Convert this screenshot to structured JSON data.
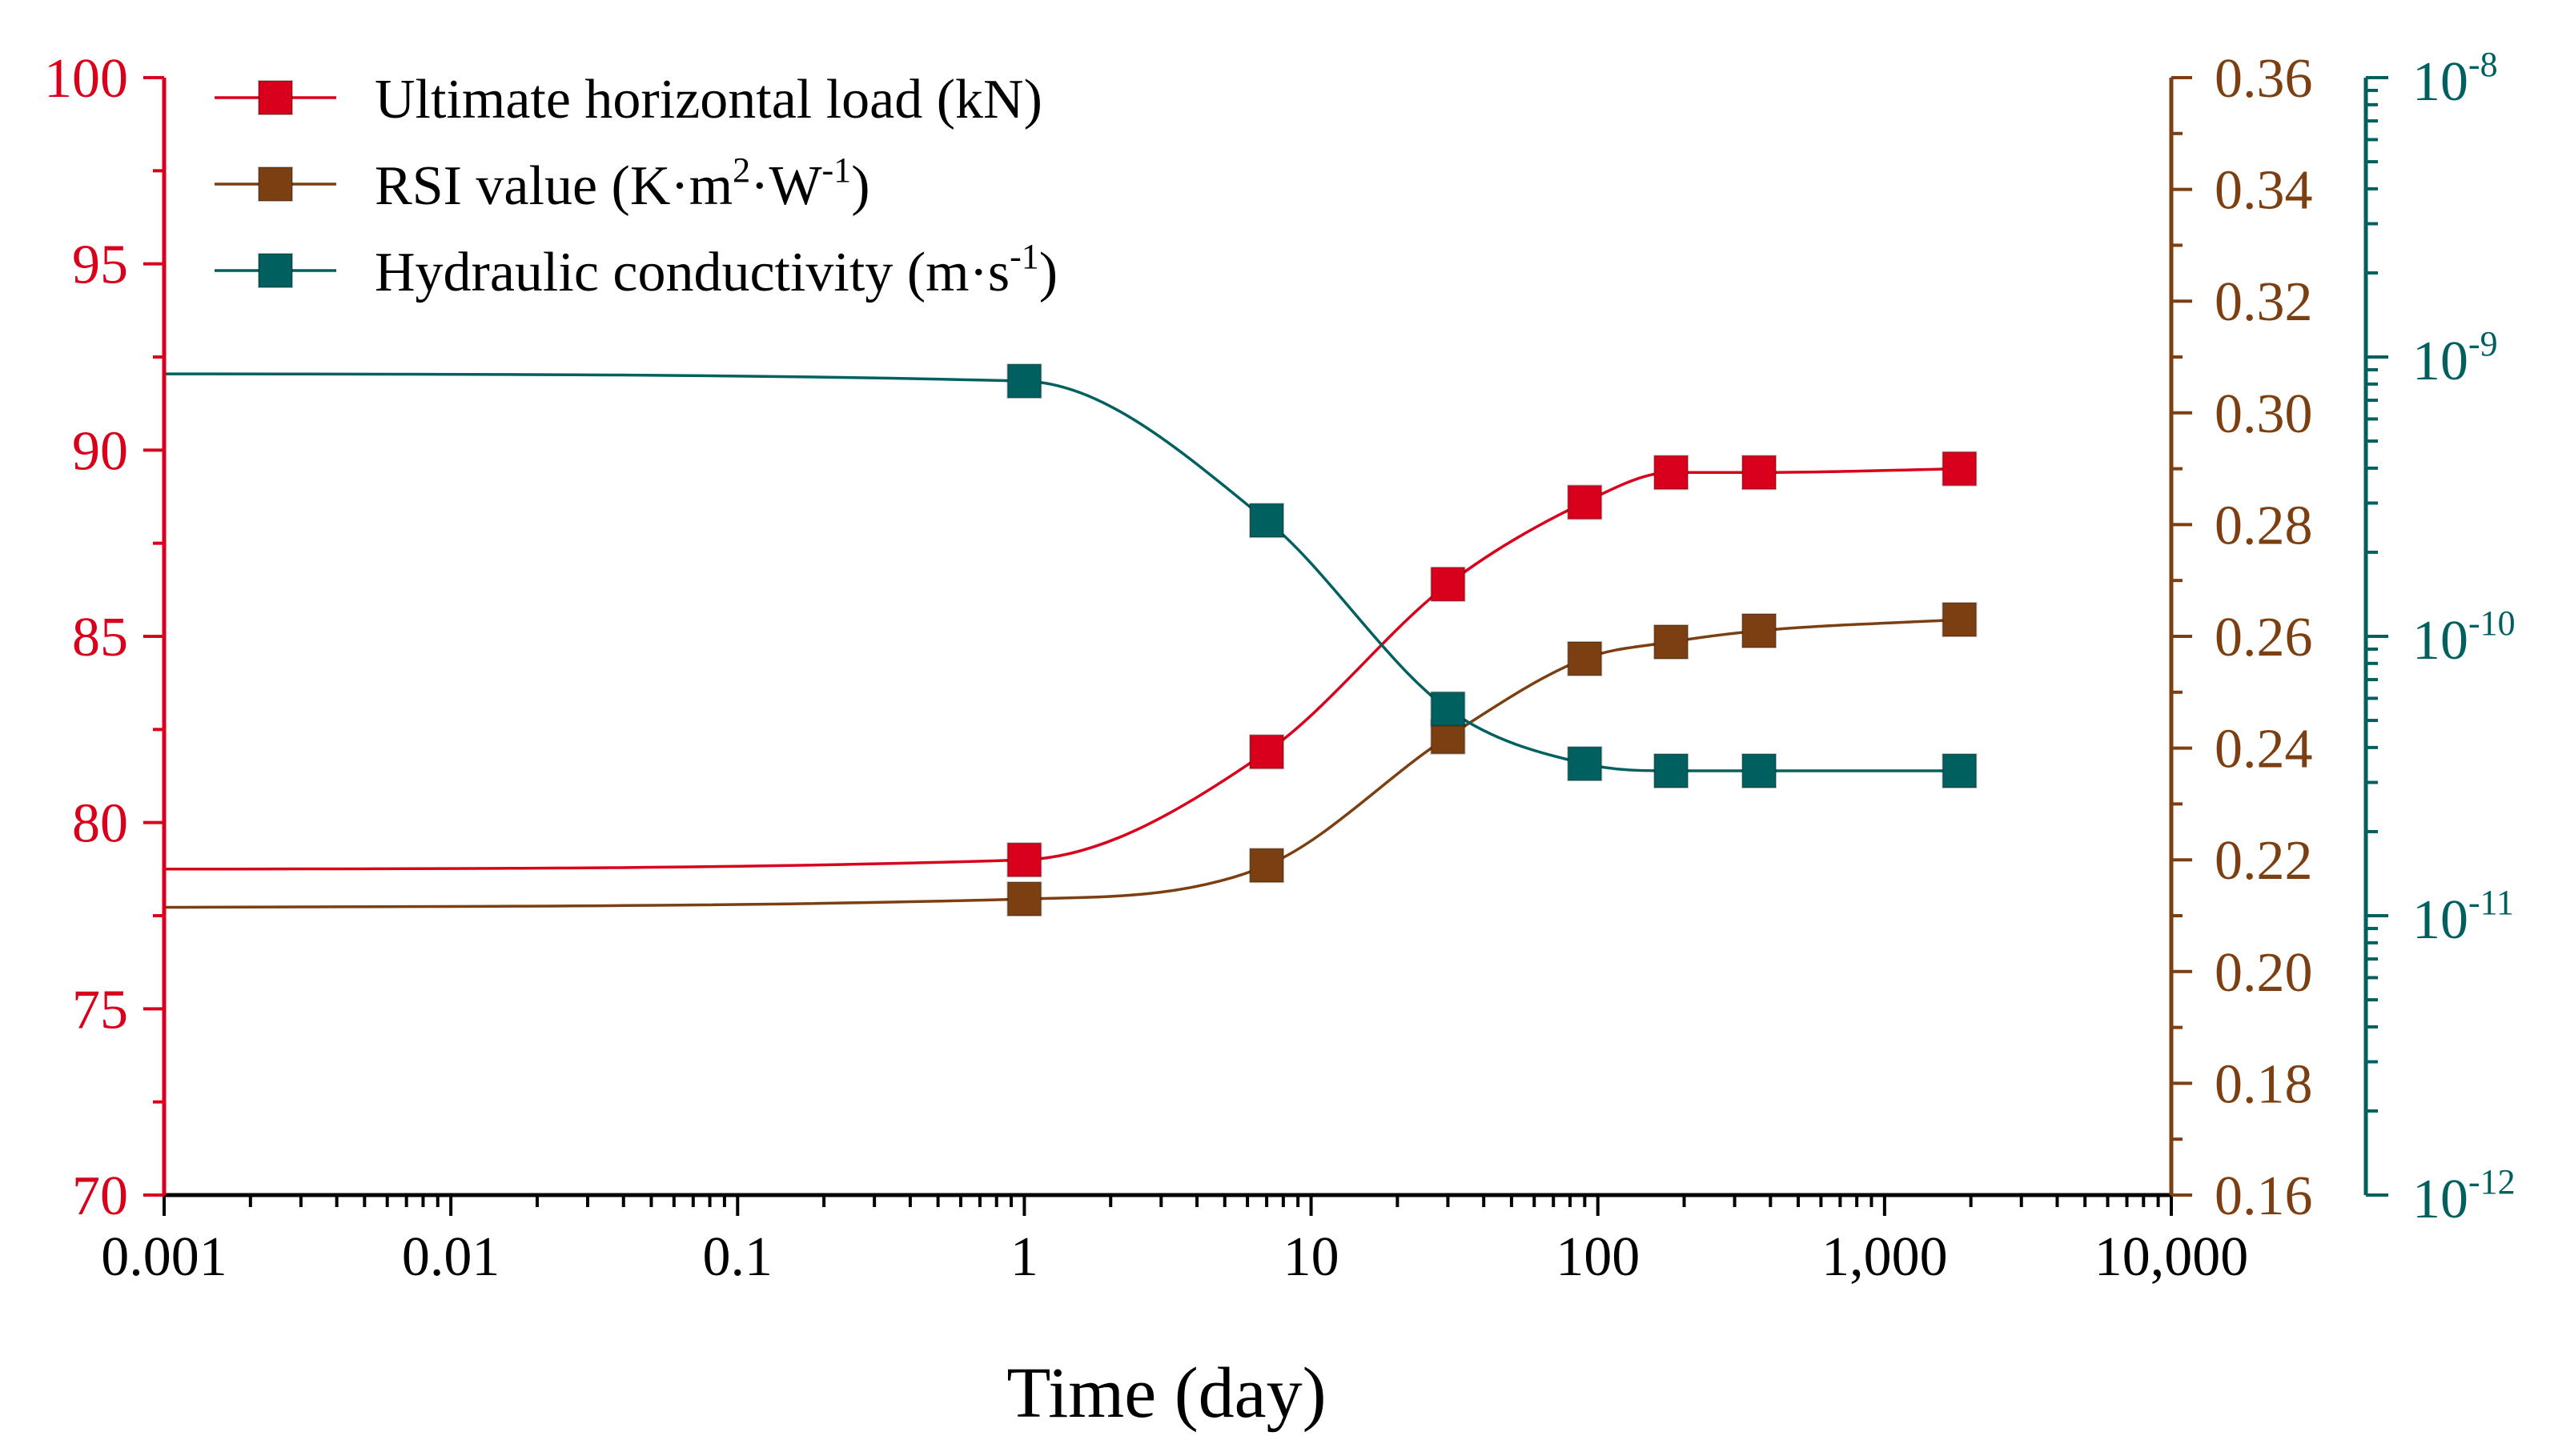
{
  "chart_data": {
    "type": "line",
    "xlabel": "Time (day)",
    "x_scale": "log",
    "xlim": [
      0.001,
      10000
    ],
    "x_tick_labels": [
      "0.001",
      "0.01",
      "0.1",
      "1",
      "10",
      "100",
      "1,000",
      "10,000"
    ],
    "y_left": {
      "lim": [
        70,
        100
      ],
      "tick_labels": [
        "70",
        "75",
        "80",
        "85",
        "90",
        "95",
        "100"
      ],
      "color": "#d9001b"
    },
    "y_right_1": {
      "lim": [
        0.16,
        0.36
      ],
      "tick_labels": [
        "0.16",
        "0.18",
        "0.20",
        "0.22",
        "0.24",
        "0.26",
        "0.28",
        "0.30",
        "0.32",
        "0.34",
        "0.36"
      ],
      "color": "#7b3f12"
    },
    "y_right_2": {
      "scale": "log",
      "lim": [
        1e-12,
        1e-08
      ],
      "tick_labels": [
        {
          "base": "10",
          "exp": "-12"
        },
        {
          "base": "10",
          "exp": "-11"
        },
        {
          "base": "10",
          "exp": "-10"
        },
        {
          "base": "10",
          "exp": "-9"
        },
        {
          "base": "10",
          "exp": "-8"
        }
      ],
      "color": "#006060"
    },
    "series": [
      {
        "name": "Ultimate horizontal load (kN)",
        "axis": "y_left",
        "color": "#d9001b",
        "x": [
          1,
          7,
          30,
          90,
          180,
          365,
          1825
        ],
        "values": [
          79.0,
          81.9,
          86.4,
          88.6,
          89.4,
          89.4,
          89.5
        ],
        "curve_start": 78.75
      },
      {
        "name": "RSI value",
        "axis": "y_right_1",
        "color": "#7b3f12",
        "x": [
          1,
          7,
          30,
          90,
          180,
          365,
          1825
        ],
        "values": [
          0.213,
          0.219,
          0.242,
          0.256,
          0.259,
          0.261,
          0.263
        ],
        "curve_start": 0.2115
      },
      {
        "name": "Hydraulic conductivity",
        "axis": "y_right_2",
        "color": "#006060",
        "x": [
          1,
          7,
          30,
          90,
          180,
          365,
          1825
        ],
        "values": [
          8.2e-10,
          2.6e-10,
          5.5e-11,
          3.5e-11,
          3.3e-11,
          3.3e-11,
          3.3e-11
        ],
        "curve_start": 8.7e-10
      }
    ],
    "legend": [
      {
        "text": "Ultimate horizontal load (kN)",
        "sup": "",
        "tail": ""
      },
      {
        "text": "RSI value (K·m",
        "sup": "2",
        "mid": "·W",
        "sup2": "-1",
        "tail": ")"
      },
      {
        "text": "Hydraulic conductivity (m·s",
        "sup": "-1",
        "tail": ")"
      }
    ],
    "legend_position": "top-left"
  }
}
